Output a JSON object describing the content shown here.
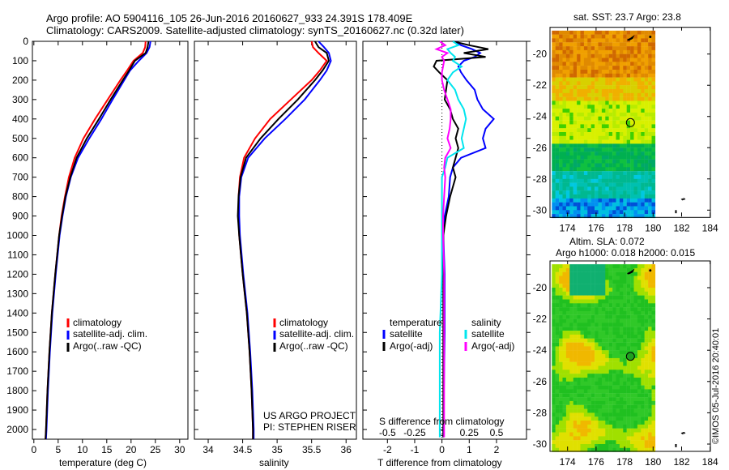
{
  "header": {
    "line1": "Argo profile: AO 5904116_105 26-Jun-2016 20160627_933 24.391S 178.409E",
    "line2": "Climatology: CARS2009. Satellite-adjusted climatology: synTS_20160627.nc (0.32d later)"
  },
  "colors": {
    "climatology": "#ff0000",
    "satellite": "#0000ff",
    "argo": "#000000",
    "sal_satellite": "#00e5ee",
    "sal_argo": "#ff00ff"
  },
  "chart_data": [
    {
      "type": "line",
      "name": "temperature",
      "xlabel": "temperature (deg C)",
      "ylabel": "depth",
      "xlim": [
        -0.3,
        31.7
      ],
      "ylim": [
        2050,
        0
      ],
      "xticks": [
        0,
        5,
        10,
        15,
        20,
        25,
        30
      ],
      "yticks": [
        0,
        100,
        200,
        300,
        400,
        500,
        600,
        700,
        800,
        900,
        1000,
        1100,
        1200,
        1300,
        1400,
        1500,
        1600,
        1700,
        1800,
        1900,
        2000
      ],
      "depth": [
        0,
        30,
        60,
        100,
        150,
        200,
        300,
        400,
        500,
        600,
        700,
        800,
        900,
        1000,
        1200,
        1400,
        1600,
        1800,
        2000,
        2050
      ],
      "series": [
        {
          "name": "climatology",
          "values": [
            23.0,
            22.9,
            22.4,
            20.5,
            19.2,
            17.8,
            15.2,
            12.6,
            10.2,
            8.4,
            7.2,
            6.4,
            5.7,
            5.2,
            4.4,
            3.7,
            3.2,
            2.8,
            2.5,
            2.4
          ]
        },
        {
          "name": "satellite-adj. clim.",
          "values": [
            24.0,
            23.8,
            23.2,
            21.6,
            19.8,
            18.6,
            16.2,
            13.9,
            11.4,
            9.1,
            7.6,
            6.6,
            5.9,
            5.3,
            4.5,
            3.8,
            3.3,
            2.9,
            2.6,
            2.5
          ]
        },
        {
          "name": "Argo(..raw -QC)",
          "values": [
            23.6,
            23.4,
            23.0,
            20.8,
            19.6,
            18.3,
            15.8,
            13.4,
            10.9,
            8.8,
            7.5,
            6.5,
            5.8,
            5.2,
            4.4,
            3.7,
            3.2,
            2.8,
            2.5,
            2.4
          ]
        }
      ],
      "legend": [
        "climatology",
        "satellite-adj. clim.",
        "Argo(..raw -QC)"
      ]
    },
    {
      "type": "line",
      "name": "salinity",
      "xlabel": "salinity",
      "xlim": [
        33.8,
        36.15
      ],
      "ylim": [
        2050,
        0
      ],
      "xticks": [
        34,
        34.5,
        35,
        35.5,
        36
      ],
      "xticklabels": [
        "34",
        "34.5",
        "35",
        "35.5",
        "36"
      ],
      "depth": [
        0,
        30,
        60,
        100,
        150,
        200,
        300,
        400,
        500,
        600,
        700,
        800,
        900,
        1000,
        1200,
        1400,
        1600,
        1800,
        2000,
        2050
      ],
      "series": [
        {
          "name": "climatology",
          "values": [
            35.5,
            35.52,
            35.6,
            35.72,
            35.62,
            35.5,
            35.2,
            34.9,
            34.68,
            34.52,
            34.46,
            34.44,
            34.44,
            34.45,
            34.5,
            34.56,
            34.6,
            34.63,
            34.65,
            34.65
          ]
        },
        {
          "name": "satellite-adj. clim.",
          "values": [
            35.6,
            35.68,
            35.75,
            35.78,
            35.72,
            35.62,
            35.4,
            35.12,
            34.82,
            34.58,
            34.48,
            34.45,
            34.45,
            34.46,
            34.51,
            34.57,
            34.61,
            34.64,
            34.66,
            34.66
          ]
        },
        {
          "name": "Argo(..raw -QC)",
          "values": [
            35.55,
            35.6,
            35.72,
            35.75,
            35.66,
            35.55,
            35.3,
            35.02,
            34.76,
            34.55,
            34.47,
            34.44,
            34.43,
            34.45,
            34.5,
            34.56,
            34.6,
            34.63,
            34.65,
            34.65
          ]
        }
      ],
      "legend": [
        "climatology",
        "satellite-adj. clim.",
        "Argo(..raw -QC)"
      ],
      "annotation": [
        "US ARGO PROJECT",
        "PI: STEPHEN RISER"
      ]
    },
    {
      "type": "line",
      "name": "difference",
      "xlabel": "T difference from climatology",
      "x2label": "S difference from climatology",
      "xlim": [
        -2.9,
        3.1
      ],
      "ylim": [
        2050,
        0
      ],
      "xticks": [
        -2,
        -1,
        0,
        1,
        2
      ],
      "x2ticks": [
        -0.5,
        -0.25,
        0,
        0.25,
        0.5
      ],
      "x2ticklabels": [
        "-0.5",
        "-0.25",
        "0",
        "0.25",
        "0.5"
      ],
      "depth": [
        0,
        20,
        40,
        60,
        80,
        100,
        130,
        160,
        200,
        250,
        300,
        350,
        400,
        450,
        500,
        550,
        600,
        650,
        700,
        800,
        900,
        1000,
        1200,
        1500,
        2000,
        2040
      ],
      "series": [
        {
          "name": "temperature satellite",
          "unit": "T",
          "values": [
            0.5,
            0.7,
            1.1,
            1.4,
            1.2,
            0.8,
            0.6,
            0.7,
            0.9,
            1.2,
            1.3,
            1.5,
            1.9,
            1.6,
            1.5,
            1.6,
            0.7,
            0.4,
            0.3,
            0.25,
            0.1,
            0.05,
            0.1,
            0.1,
            0.05,
            0.05
          ]
        },
        {
          "name": "temperature Argo(-adj)",
          "unit": "T",
          "values": [
            0.4,
            1.0,
            1.7,
            0.8,
            1.6,
            -0.2,
            -0.3,
            -0.1,
            0.2,
            0.15,
            0.1,
            0.3,
            0.4,
            0.6,
            0.5,
            0.6,
            0.5,
            0.4,
            0.5,
            0.3,
            0.15,
            0.05,
            0.05,
            0.05,
            0.05,
            0.05
          ]
        },
        {
          "name": "salinity satellite",
          "unit": "S",
          "values": [
            0.1,
            0.15,
            0.05,
            0.08,
            0.12,
            0.1,
            0.18,
            0.1,
            0.05,
            0.12,
            0.15,
            0.2,
            0.22,
            0.2,
            0.18,
            0.2,
            0.05,
            0.03,
            0.0,
            0.0,
            0.0,
            0.0,
            0.0,
            -0.02,
            -0.02,
            -0.02
          ]
        },
        {
          "name": "salinity Argo(-adj)",
          "unit": "S",
          "values": [
            -0.02,
            0.03,
            -0.05,
            0.05,
            0.0,
            0.02,
            0.01,
            0.0,
            0.0,
            0.02,
            0.05,
            0.08,
            0.08,
            0.07,
            0.05,
            0.08,
            0.03,
            0.02,
            0.03,
            0.02,
            0.01,
            0.01,
            0.02,
            0.02,
            0.02,
            0.02
          ]
        }
      ],
      "legend": {
        "temperature_title": "temperature",
        "salinity_title": "salinity",
        "temp_items": [
          "satellite",
          "Argo(-adj)"
        ],
        "sal_items": [
          "satellite",
          "Argo(-adj)"
        ]
      }
    },
    {
      "type": "heatmap",
      "name": "sst-map",
      "title": "sat. SST: 23.7 Argo: 23.8",
      "xlim": [
        172.9,
        184.1
      ],
      "ylim": [
        -30.4,
        -18.5
      ],
      "xticks": [
        174,
        176,
        178,
        180,
        182,
        184
      ],
      "yticks": [
        -20,
        -22,
        -24,
        -26,
        -28,
        -30
      ],
      "argo_position": {
        "lon": 178.409,
        "lat": -24.391
      }
    },
    {
      "type": "heatmap",
      "name": "sla-map",
      "title": [
        "Altim. SLA: 0.072",
        "Argo h1000: 0.018 h2000: 0.015"
      ],
      "xlim": [
        172.9,
        184.1
      ],
      "ylim": [
        -30.4,
        -18.5
      ],
      "xticks": [
        174,
        176,
        178,
        180,
        182,
        184
      ],
      "yticks": [
        -20,
        -22,
        -24,
        -26,
        -28,
        -30
      ],
      "argo_position": {
        "lon": 178.409,
        "lat": -24.391
      }
    }
  ],
  "footer": {
    "credit": "©IMOS 05-Jul-2016 20:40:01"
  }
}
